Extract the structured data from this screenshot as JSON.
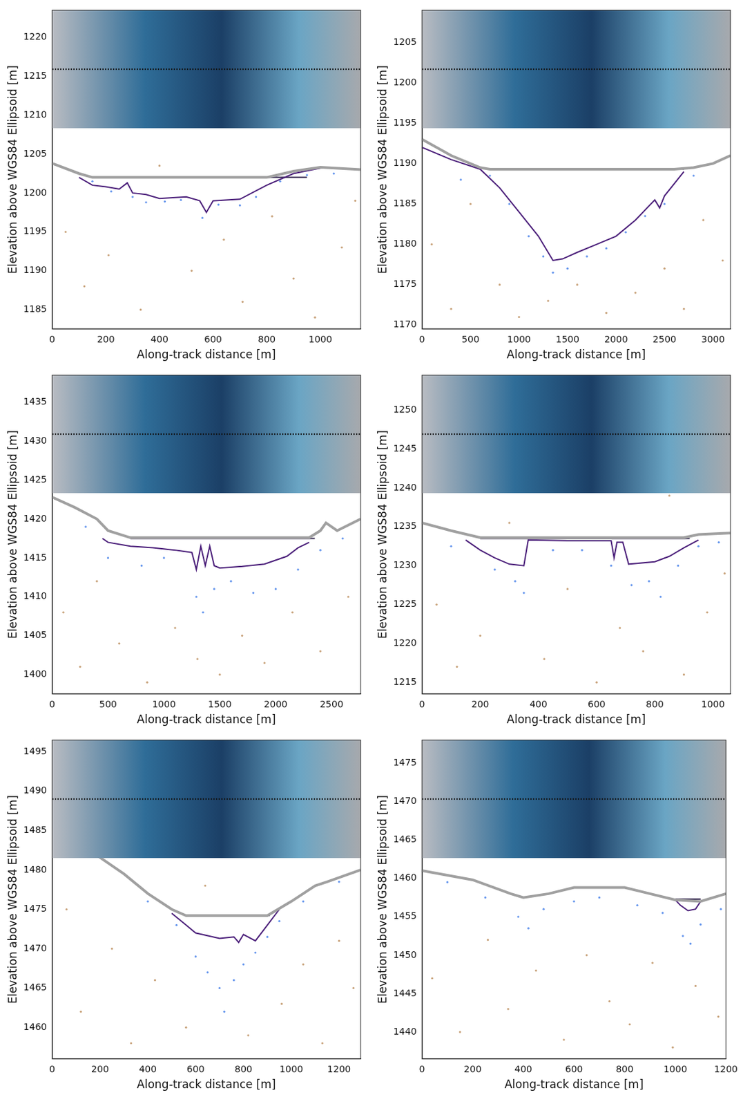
{
  "chart_data": [
    {
      "type": "scatter",
      "x_label": "Along-track distance [m]",
      "y_label": "Elevation above WGS84 Ellipsoid [m]",
      "xlim": [
        0,
        1150
      ],
      "xticks": [
        0,
        200,
        400,
        600,
        800,
        1000
      ],
      "ylim": [
        1182.5,
        1223.5
      ],
      "yticks": [
        1185,
        1190,
        1195,
        1200,
        1205,
        1210,
        1215,
        1220
      ],
      "grid": false,
      "tick_labels": true,
      "series": [
        {
          "type": "scatter",
          "marker": "dot",
          "color": "#c8a27a",
          "x": [
            50,
            120,
            210,
            330,
            400,
            520,
            640,
            710,
            820,
            900,
            980,
            1080,
            1130
          ],
          "values": [
            1195,
            1188,
            1192,
            1185,
            1203.5,
            1190,
            1194,
            1186,
            1197,
            1189,
            1184,
            1193,
            1199
          ]
        },
        {
          "type": "scatter",
          "marker": "dot",
          "color": "#6495ed",
          "x": [
            150,
            220,
            300,
            350,
            420,
            480,
            560,
            620,
            700,
            760,
            850,
            950,
            1050
          ],
          "values": [
            1201.5,
            1200.2,
            1199.5,
            1198.8,
            1198.9,
            1199.1,
            1196.8,
            1198.5,
            1198.4,
            1199.5,
            1201.5,
            1202.3,
            1202.5
          ]
        },
        {
          "type": "line",
          "line_style": "solid",
          "color": "#a0a0a0",
          "x": [
            0,
            100,
            150,
            800,
            900,
            1000,
            1150
          ],
          "values": [
            1203.8,
            1202.5,
            1202,
            1202,
            1202.8,
            1203.3,
            1203
          ]
        },
        {
          "type": "line",
          "line_style": "solid",
          "color": "#4b1f7a",
          "x": [
            100,
            150,
            200,
            250,
            280,
            300,
            350,
            400,
            500,
            550,
            575,
            600,
            700,
            800,
            900,
            1000
          ],
          "values": [
            1202,
            1201,
            1200.8,
            1200.5,
            1201.3,
            1200,
            1199.8,
            1199.3,
            1199.5,
            1199,
            1197.5,
            1199,
            1199.2,
            1201,
            1202.5,
            1203.2
          ]
        },
        {
          "type": "line",
          "line_style": "solid",
          "color": "#3a2d55",
          "x": [
            150,
            950
          ],
          "values": [
            1202,
            1202
          ]
        }
      ]
    },
    {
      "type": "scatter",
      "x_label": "Along-track distance [m]",
      "y_label": "Elevation above WGS84 Ellipsoid [m]",
      "xlim": [
        0,
        3180
      ],
      "xticks": [
        0,
        500,
        1000,
        1500,
        2000,
        2500,
        3000
      ],
      "ylim": [
        1169.5,
        1209
      ],
      "yticks": [
        1170,
        1175,
        1180,
        1185,
        1190,
        1195,
        1200,
        1205
      ],
      "grid": false,
      "tick_labels": true,
      "series": [
        {
          "type": "scatter",
          "marker": "dot",
          "color": "#c8a27a",
          "x": [
            100,
            300,
            500,
            800,
            1000,
            1300,
            1600,
            1900,
            2200,
            2500,
            2700,
            2900,
            3100
          ],
          "values": [
            1180,
            1172,
            1185,
            1175,
            1171,
            1173,
            1175,
            1171.5,
            1174,
            1177,
            1172,
            1183,
            1178
          ]
        },
        {
          "type": "scatter",
          "marker": "dot",
          "color": "#6495ed",
          "x": [
            400,
            700,
            900,
            1100,
            1250,
            1350,
            1500,
            1700,
            1900,
            2100,
            2300,
            2500,
            2800
          ],
          "values": [
            1188,
            1188.5,
            1185,
            1181,
            1178.5,
            1176.5,
            1177,
            1178.5,
            1179.5,
            1181.5,
            1183.5,
            1185,
            1188.5
          ]
        },
        {
          "type": "line",
          "line_style": "solid",
          "color": "#a0a0a0",
          "x": [
            0,
            300,
            600,
            700,
            2600,
            2800,
            3000,
            3180
          ],
          "values": [
            1193,
            1191,
            1189.5,
            1189.3,
            1189.3,
            1189.5,
            1190,
            1191
          ]
        },
        {
          "type": "line",
          "line_style": "solid",
          "color": "#4b1f7a",
          "x": [
            0,
            300,
            600,
            800,
            1000,
            1200,
            1350,
            1450,
            1600,
            1800,
            2000,
            2200,
            2400,
            2450,
            2500,
            2700
          ],
          "values": [
            1192,
            1190.5,
            1189.3,
            1187,
            1184,
            1181,
            1178,
            1178.2,
            1179,
            1180,
            1181,
            1183,
            1185.5,
            1184.5,
            1186,
            1189
          ]
        },
        {
          "type": "line",
          "line_style": "solid",
          "color": "#3a2d55",
          "x": [
            700,
            2700
          ],
          "values": [
            1189.3,
            1189.3
          ]
        }
      ]
    },
    {
      "type": "scatter",
      "x_label": "Along-track distance [m]",
      "y_label": "Elevation above WGS84 Ellipsoid [m]",
      "xlim": [
        0,
        2760
      ],
      "xticks": [
        0,
        500,
        1000,
        1500,
        2000,
        2500
      ],
      "ylim": [
        1397.5,
        1438.5
      ],
      "yticks": [
        1400,
        1405,
        1410,
        1415,
        1420,
        1425,
        1430,
        1435
      ],
      "grid": false,
      "tick_labels": true,
      "series": [
        {
          "type": "scatter",
          "marker": "dot",
          "color": "#c8a27a",
          "x": [
            100,
            250,
            400,
            600,
            850,
            1100,
            1300,
            1500,
            1700,
            1900,
            2150,
            2400,
            2650
          ],
          "values": [
            1408,
            1401,
            1412,
            1404,
            1399,
            1406,
            1402,
            1400,
            1405,
            1401.5,
            1408,
            1403,
            1410
          ]
        },
        {
          "type": "scatter",
          "marker": "dot",
          "color": "#6495ed",
          "x": [
            300,
            500,
            800,
            1000,
            1290,
            1350,
            1450,
            1600,
            1800,
            2000,
            2200,
            2400,
            2600
          ],
          "values": [
            1419,
            1415,
            1414,
            1415,
            1410,
            1408,
            1411,
            1412,
            1410.5,
            1411,
            1413.5,
            1416,
            1417.5
          ]
        },
        {
          "type": "line",
          "line_style": "solid",
          "color": "#a0a0a0",
          "x": [
            0,
            200,
            400,
            500,
            700,
            2300,
            2400,
            2450,
            2550,
            2760
          ],
          "values": [
            1422.8,
            1421.5,
            1420,
            1418.5,
            1417.6,
            1417.6,
            1418.5,
            1419.5,
            1418.5,
            1420
          ]
        },
        {
          "type": "line",
          "line_style": "solid",
          "color": "#4b1f7a",
          "x": [
            450,
            500,
            700,
            900,
            1100,
            1250,
            1290,
            1330,
            1370,
            1410,
            1450,
            1500,
            1700,
            1900,
            2100,
            2200,
            2300
          ],
          "values": [
            1417.5,
            1417,
            1416.5,
            1416.3,
            1416,
            1415.7,
            1413.5,
            1416.5,
            1414,
            1416.5,
            1414,
            1413.7,
            1413.9,
            1414.2,
            1415.2,
            1416.3,
            1417
          ]
        },
        {
          "type": "line",
          "line_style": "solid",
          "color": "#3a2d55",
          "x": [
            700,
            2350
          ],
          "values": [
            1417.5,
            1417.5
          ]
        }
      ]
    },
    {
      "type": "scatter",
      "x_label": "Along-track distance [m]",
      "y_label": "Elevation above WGS84 Ellipsoid [m]",
      "xlim": [
        0,
        1060
      ],
      "xticks": [
        0,
        200,
        400,
        600,
        800,
        1000
      ],
      "ylim": [
        1213.5,
        1254.5
      ],
      "yticks": [
        1215,
        1220,
        1225,
        1230,
        1235,
        1240,
        1245,
        1250
      ],
      "grid": false,
      "tick_labels": true,
      "series": [
        {
          "type": "scatter",
          "marker": "dot",
          "color": "#c8a27a",
          "x": [
            50,
            120,
            200,
            300,
            420,
            500,
            600,
            680,
            760,
            850,
            900,
            980,
            1040
          ],
          "values": [
            1225,
            1217,
            1221,
            1235.5,
            1218,
            1227,
            1215,
            1222,
            1219,
            1239,
            1216,
            1224,
            1229
          ]
        },
        {
          "type": "scatter",
          "marker": "dot",
          "color": "#6495ed",
          "x": [
            100,
            250,
            320,
            350,
            450,
            550,
            650,
            720,
            780,
            820,
            880,
            950,
            1020
          ],
          "values": [
            1232.5,
            1229.5,
            1228,
            1226.5,
            1232,
            1232,
            1230,
            1227.5,
            1228,
            1226,
            1230,
            1232.5,
            1233
          ]
        },
        {
          "type": "line",
          "line_style": "solid",
          "color": "#a0a0a0",
          "x": [
            0,
            100,
            200,
            900,
            950,
            1060
          ],
          "values": [
            1235.5,
            1234.5,
            1233.6,
            1233.6,
            1234,
            1234.2
          ]
        },
        {
          "type": "line",
          "line_style": "solid",
          "color": "#4b1f7a",
          "x": [
            150,
            200,
            250,
            300,
            350,
            365,
            500,
            650,
            660,
            670,
            690,
            710,
            800,
            850,
            900,
            950
          ],
          "values": [
            1233.3,
            1232,
            1231,
            1230.2,
            1230,
            1233.3,
            1233.2,
            1233.2,
            1231,
            1233,
            1233,
            1230.2,
            1230.5,
            1231.2,
            1232.3,
            1233.3
          ]
        },
        {
          "type": "line",
          "line_style": "solid",
          "color": "#3a2d55",
          "x": [
            200,
            920
          ],
          "values": [
            1233.5,
            1233.5
          ]
        }
      ]
    },
    {
      "type": "scatter",
      "x_label": "Along-track distance [m]",
      "y_label": "Elevation above WGS84 Ellipsoid [m]",
      "xlim": [
        0,
        1290
      ],
      "xticks": [
        0,
        200,
        400,
        600,
        800,
        1000,
        1200
      ],
      "ylim": [
        1456,
        1496.5
      ],
      "yticks": [
        1460,
        1465,
        1470,
        1475,
        1480,
        1485,
        1490,
        1495
      ],
      "grid": false,
      "tick_labels": true,
      "series": [
        {
          "type": "scatter",
          "marker": "dot",
          "color": "#c8a27a",
          "x": [
            60,
            120,
            250,
            330,
            430,
            560,
            640,
            820,
            960,
            1050,
            1130,
            1200,
            1260
          ],
          "values": [
            1475,
            1462,
            1470,
            1458,
            1466,
            1460,
            1478,
            1459,
            1463,
            1468,
            1458,
            1471,
            1465
          ]
        },
        {
          "type": "scatter",
          "marker": "dot",
          "color": "#6495ed",
          "x": [
            400,
            520,
            600,
            650,
            700,
            720,
            760,
            800,
            850,
            900,
            950,
            1050,
            1200
          ],
          "values": [
            1476,
            1473,
            1469,
            1467,
            1465,
            1462,
            1466,
            1468,
            1469.5,
            1471.5,
            1473.5,
            1476,
            1478.5
          ]
        },
        {
          "type": "line",
          "line_style": "solid",
          "color": "#a0a0a0",
          "x": [
            180,
            300,
            400,
            500,
            560,
            900,
            1000,
            1100,
            1150,
            1290
          ],
          "values": [
            1482,
            1479.5,
            1477,
            1475,
            1474.2,
            1474.2,
            1476,
            1478,
            1478.5,
            1480
          ]
        },
        {
          "type": "line",
          "line_style": "solid",
          "color": "#4b1f7a",
          "x": [
            500,
            560,
            600,
            700,
            760,
            780,
            800,
            850,
            900,
            950
          ],
          "values": [
            1474.5,
            1473,
            1472,
            1471.3,
            1471.5,
            1470.8,
            1471.8,
            1471,
            1473,
            1475
          ]
        },
        {
          "type": "line",
          "line_style": "solid",
          "color": "#3a2d55",
          "x": [
            560,
            910
          ],
          "values": [
            1474.2,
            1474.2
          ]
        }
      ]
    },
    {
      "type": "scatter",
      "x_label": "Along-track distance [m]",
      "y_label": "Elevation above WGS84 Ellipsoid [m]",
      "xlim": [
        0,
        1200
      ],
      "xticks": [
        0,
        200,
        400,
        600,
        800,
        1000,
        1200
      ],
      "ylim": [
        1436.5,
        1478
      ],
      "yticks": [
        1440,
        1445,
        1450,
        1455,
        1460,
        1465,
        1470,
        1475
      ],
      "grid": false,
      "tick_labels": true,
      "series": [
        {
          "type": "scatter",
          "marker": "dot",
          "color": "#c8a27a",
          "x": [
            40,
            150,
            260,
            340,
            450,
            560,
            650,
            740,
            820,
            910,
            990,
            1080,
            1170
          ],
          "values": [
            1447,
            1440,
            1452,
            1443,
            1448,
            1439,
            1450,
            1444,
            1441,
            1449,
            1438,
            1446,
            1442
          ]
        },
        {
          "type": "scatter",
          "marker": "dot",
          "color": "#6495ed",
          "x": [
            100,
            250,
            380,
            420,
            480,
            600,
            700,
            850,
            950,
            1030,
            1060,
            1100,
            1180
          ],
          "values": [
            1459.5,
            1457.5,
            1455,
            1453.5,
            1456,
            1457,
            1457.5,
            1456.5,
            1455.5,
            1452.5,
            1451.5,
            1454,
            1456
          ]
        },
        {
          "type": "line",
          "line_style": "solid",
          "color": "#a0a0a0",
          "x": [
            0,
            200,
            350,
            400,
            500,
            600,
            800,
            900,
            1000,
            1100,
            1200
          ],
          "values": [
            1461,
            1459.8,
            1458,
            1457.5,
            1458,
            1458.8,
            1458.8,
            1458,
            1457.2,
            1457,
            1458
          ]
        },
        {
          "type": "line",
          "line_style": "solid",
          "color": "#4b1f7a",
          "x": [
            1000,
            1020,
            1050,
            1080,
            1100
          ],
          "values": [
            1457.2,
            1456.5,
            1455.8,
            1456,
            1457
          ]
        },
        {
          "type": "line",
          "line_style": "solid",
          "color": "#3a2d55",
          "x": [
            1000,
            1100
          ],
          "values": [
            1457.3,
            1457.3
          ]
        }
      ]
    }
  ]
}
